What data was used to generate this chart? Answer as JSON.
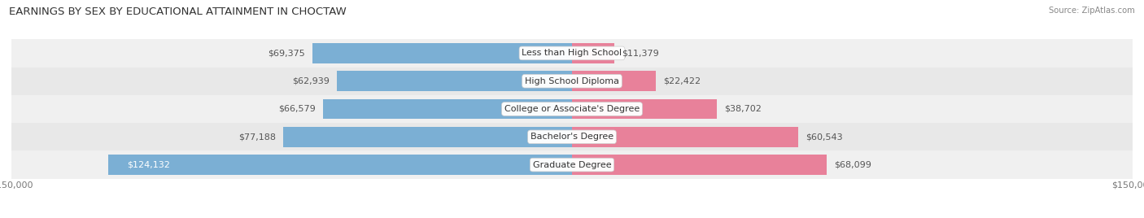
{
  "title": "EARNINGS BY SEX BY EDUCATIONAL ATTAINMENT IN CHOCTAW",
  "source": "Source: ZipAtlas.com",
  "categories": [
    "Less than High School",
    "High School Diploma",
    "College or Associate's Degree",
    "Bachelor's Degree",
    "Graduate Degree"
  ],
  "male_values": [
    69375,
    62939,
    66579,
    77188,
    124132
  ],
  "female_values": [
    11379,
    22422,
    38702,
    60543,
    68099
  ],
  "male_color": "#7bafd4",
  "female_color": "#e8819a",
  "max_value": 150000,
  "title_fontsize": 9.5,
  "label_fontsize": 8.0,
  "tick_fontsize": 8.0,
  "bar_height": 0.72,
  "figsize": [
    14.06,
    2.68
  ],
  "dpi": 100
}
